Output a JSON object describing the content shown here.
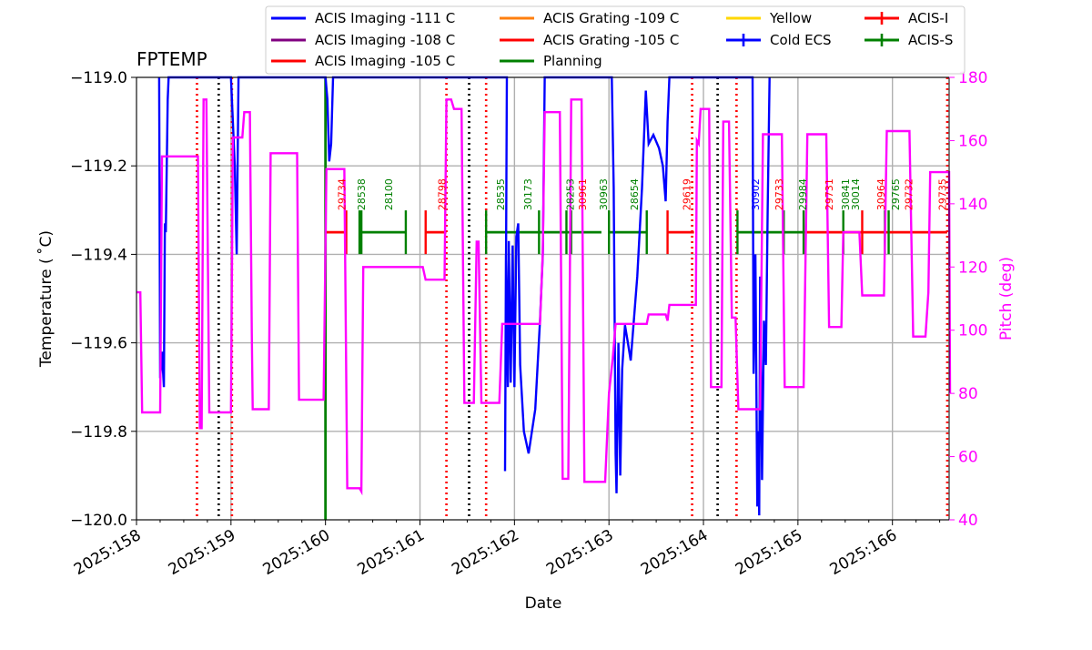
{
  "chart_data": {
    "type": "line",
    "title": "FPTEMP",
    "xlabel": "Date",
    "ylabel": "Temperature ( ˚C)",
    "y2label": "Pitch (deg)",
    "xlim": [
      158.0,
      166.6
    ],
    "ylim": [
      -120.0,
      -119.0
    ],
    "y2lim": [
      40,
      180
    ],
    "x_ticks": [
      "2025:158",
      "2025:159",
      "2025:160",
      "2025:161",
      "2025:162",
      "2025:163",
      "2025:164",
      "2025:165",
      "2025:166"
    ],
    "x_tick_values": [
      158,
      159,
      160,
      161,
      162,
      163,
      164,
      165,
      166
    ],
    "y_ticks": [
      "−120.0",
      "−119.8",
      "−119.6",
      "−119.4",
      "−119.2",
      "−119.0"
    ],
    "y_tick_values": [
      -120.0,
      -119.8,
      -119.6,
      -119.4,
      -119.2,
      -119.0
    ],
    "y2_ticks": [
      "40",
      "60",
      "80",
      "100",
      "120",
      "140",
      "160",
      "180"
    ],
    "y2_tick_values": [
      40,
      60,
      80,
      100,
      120,
      140,
      160,
      180
    ],
    "grid": true,
    "legend_position": "top-center",
    "legend": [
      {
        "label": "ACIS Imaging -111 C",
        "color": "#0000ff",
        "marker": "line"
      },
      {
        "label": "ACIS Grating -109 C",
        "color": "#ff7f0e",
        "marker": "line"
      },
      {
        "label": "Yellow",
        "color": "#ffd700",
        "marker": "line"
      },
      {
        "label": "ACIS-I",
        "color": "#ff0000",
        "marker": "errorbar"
      },
      {
        "label": "ACIS Imaging -108 C",
        "color": "#800080",
        "marker": "line"
      },
      {
        "label": "ACIS Grating -105 C",
        "color": "#ff0000",
        "marker": "line"
      },
      {
        "label": "Cold ECS",
        "color": "#0000ff",
        "marker": "errorbar"
      },
      {
        "label": "ACIS-S",
        "color": "#008000",
        "marker": "errorbar"
      },
      {
        "label": "ACIS Imaging -105 C",
        "color": "#ff0000",
        "marker": "line"
      },
      {
        "label": "Planning",
        "color": "#008000",
        "marker": "line"
      }
    ],
    "colors": {
      "temperature": "#0000ff",
      "pitch": "#ff00ff",
      "acis_i": "#ff0000",
      "acis_s": "#008000",
      "planning": "#008000"
    },
    "temperature_series": [
      [
        158.24,
        -119.0
      ],
      [
        158.25,
        -119.68
      ],
      [
        158.27,
        -119.62
      ],
      [
        158.29,
        -119.7
      ],
      [
        158.3,
        -119.33
      ],
      [
        158.31,
        -119.35
      ],
      [
        158.33,
        -119.05
      ],
      [
        158.34,
        -119.0
      ],
      [
        159.0,
        -119.0
      ],
      [
        159.02,
        -119.1
      ],
      [
        159.04,
        -119.2
      ],
      [
        159.06,
        -119.4
      ],
      [
        159.08,
        -119.0
      ],
      [
        160.0,
        -119.0
      ],
      [
        160.02,
        -119.05
      ],
      [
        160.04,
        -119.19
      ],
      [
        160.06,
        -119.15
      ],
      [
        160.08,
        -119.0
      ],
      [
        161.92,
        -119.0
      ],
      [
        161.9,
        -119.89
      ],
      [
        161.91,
        -119.4
      ],
      [
        161.93,
        -119.7
      ],
      [
        161.94,
        -119.37
      ],
      [
        161.96,
        -119.69
      ],
      [
        161.98,
        -119.38
      ],
      [
        162.0,
        -119.7
      ],
      [
        162.02,
        -119.36
      ],
      [
        162.04,
        -119.33
      ],
      [
        162.06,
        -119.65
      ],
      [
        162.1,
        -119.8
      ],
      [
        162.15,
        -119.85
      ],
      [
        162.22,
        -119.75
      ],
      [
        162.27,
        -119.55
      ],
      [
        162.3,
        -119.4
      ],
      [
        162.32,
        -119.0
      ],
      [
        163.03,
        -119.0
      ],
      [
        163.05,
        -119.25
      ],
      [
        163.07,
        -119.85
      ],
      [
        163.08,
        -119.94
      ],
      [
        163.1,
        -119.6
      ],
      [
        163.12,
        -119.9
      ],
      [
        163.14,
        -119.66
      ],
      [
        163.17,
        -119.56
      ],
      [
        163.2,
        -119.6
      ],
      [
        163.23,
        -119.64
      ],
      [
        163.3,
        -119.45
      ],
      [
        163.35,
        -119.25
      ],
      [
        163.39,
        -119.03
      ],
      [
        163.42,
        -119.15
      ],
      [
        163.47,
        -119.13
      ],
      [
        163.53,
        -119.16
      ],
      [
        163.57,
        -119.2
      ],
      [
        163.6,
        -119.28
      ],
      [
        163.62,
        -119.1
      ],
      [
        163.64,
        -119.0
      ],
      [
        164.52,
        -119.0
      ],
      [
        164.53,
        -119.67
      ],
      [
        164.55,
        -119.4
      ],
      [
        164.57,
        -119.97
      ],
      [
        164.58,
        -119.8
      ],
      [
        164.59,
        -119.99
      ],
      [
        164.6,
        -119.45
      ],
      [
        164.62,
        -119.91
      ],
      [
        164.64,
        -119.55
      ],
      [
        164.66,
        -119.65
      ],
      [
        164.68,
        -119.3
      ],
      [
        164.7,
        -119.0
      ]
    ],
    "pitch_series": [
      [
        158.0,
        112
      ],
      [
        158.04,
        112
      ],
      [
        158.06,
        74
      ],
      [
        158.25,
        74
      ],
      [
        158.27,
        155
      ],
      [
        158.65,
        155
      ],
      [
        158.67,
        69
      ],
      [
        158.69,
        69
      ],
      [
        158.71,
        173
      ],
      [
        158.74,
        173
      ],
      [
        158.77,
        74
      ],
      [
        159.0,
        74
      ],
      [
        159.02,
        161
      ],
      [
        159.12,
        161
      ],
      [
        159.14,
        169
      ],
      [
        159.2,
        169
      ],
      [
        159.22,
        99
      ],
      [
        159.23,
        75
      ],
      [
        159.4,
        75
      ],
      [
        159.42,
        156
      ],
      [
        159.7,
        156
      ],
      [
        159.72,
        78
      ],
      [
        159.98,
        78
      ],
      [
        160.01,
        151
      ],
      [
        160.2,
        151
      ],
      [
        160.23,
        50
      ],
      [
        160.36,
        50
      ],
      [
        160.38,
        49
      ],
      [
        160.4,
        120
      ],
      [
        160.85,
        120
      ],
      [
        160.86,
        120
      ],
      [
        161.03,
        120
      ],
      [
        161.06,
        116
      ],
      [
        161.26,
        116
      ],
      [
        161.28,
        173
      ],
      [
        161.33,
        173
      ],
      [
        161.36,
        170
      ],
      [
        161.44,
        170
      ],
      [
        161.47,
        77
      ],
      [
        161.57,
        77
      ],
      [
        161.6,
        128
      ],
      [
        161.62,
        128
      ],
      [
        161.65,
        77
      ],
      [
        161.84,
        77
      ],
      [
        161.87,
        102
      ],
      [
        162.27,
        102
      ],
      [
        162.3,
        125
      ],
      [
        162.32,
        169
      ],
      [
        162.48,
        169
      ],
      [
        162.51,
        53
      ],
      [
        162.57,
        53
      ],
      [
        162.6,
        173
      ],
      [
        162.71,
        173
      ],
      [
        162.74,
        52
      ],
      [
        162.96,
        52
      ],
      [
        163.0,
        80
      ],
      [
        163.04,
        91
      ],
      [
        163.07,
        102
      ],
      [
        163.4,
        102
      ],
      [
        163.42,
        105
      ],
      [
        163.6,
        105
      ],
      [
        163.62,
        103
      ],
      [
        163.64,
        108
      ],
      [
        163.92,
        108
      ],
      [
        163.93,
        160
      ],
      [
        163.95,
        159
      ],
      [
        163.97,
        170
      ],
      [
        164.06,
        170
      ],
      [
        164.08,
        82
      ],
      [
        164.19,
        82
      ],
      [
        164.21,
        166
      ],
      [
        164.27,
        166
      ],
      [
        164.3,
        104
      ],
      [
        164.34,
        104
      ],
      [
        164.37,
        75
      ],
      [
        164.6,
        75
      ],
      [
        164.63,
        162
      ],
      [
        164.83,
        162
      ],
      [
        164.86,
        82
      ],
      [
        165.06,
        82
      ],
      [
        165.1,
        162
      ],
      [
        165.3,
        162
      ],
      [
        165.33,
        101
      ],
      [
        165.46,
        101
      ],
      [
        165.48,
        131
      ],
      [
        165.65,
        131
      ],
      [
        165.68,
        111
      ],
      [
        165.91,
        111
      ],
      [
        165.94,
        163
      ],
      [
        166.18,
        163
      ],
      [
        166.22,
        98
      ],
      [
        166.35,
        98
      ],
      [
        166.38,
        112
      ],
      [
        166.4,
        150
      ],
      [
        166.6,
        150
      ],
      [
        166.61,
        80
      ]
    ],
    "dotted_lines": [
      {
        "x": 158.64,
        "color": "#ff0000"
      },
      {
        "x": 158.87,
        "color": "#000000"
      },
      {
        "x": 159.01,
        "color": "#ff0000"
      },
      {
        "x": 161.28,
        "color": "#ff0000"
      },
      {
        "x": 161.52,
        "color": "#000000"
      },
      {
        "x": 161.7,
        "color": "#ff0000"
      },
      {
        "x": 163.88,
        "color": "#ff0000"
      },
      {
        "x": 164.15,
        "color": "#000000"
      },
      {
        "x": 164.35,
        "color": "#ff0000"
      },
      {
        "x": 166.58,
        "color": "#ff0000"
      }
    ],
    "planning_spike_x": 160.0,
    "obs_segments": [
      {
        "x0": 160.0,
        "x1": 160.22,
        "color": "#ff0000"
      },
      {
        "x0": 160.36,
        "x1": 160.85,
        "color": "#008000"
      },
      {
        "x0": 161.06,
        "x1": 161.28,
        "color": "#ff0000"
      },
      {
        "x0": 161.7,
        "x1": 162.92,
        "color": "#008000"
      },
      {
        "x0": 163.0,
        "x1": 163.4,
        "color": "#008000"
      },
      {
        "x0": 163.62,
        "x1": 163.9,
        "color": "#ff0000"
      },
      {
        "x0": 164.36,
        "x1": 164.85,
        "color": "#008000"
      },
      {
        "x0": 164.85,
        "x1": 165.06,
        "color": "#008000"
      },
      {
        "x0": 165.06,
        "x1": 165.94,
        "color": "#ff0000"
      },
      {
        "x0": 165.94,
        "x1": 166.58,
        "color": "#ff0000"
      }
    ],
    "obs_ticks": [
      {
        "x": 160.22,
        "color": "#ff0000"
      },
      {
        "x": 160.36,
        "color": "#008000"
      },
      {
        "x": 160.38,
        "color": "#008000"
      },
      {
        "x": 160.85,
        "color": "#008000"
      },
      {
        "x": 161.06,
        "color": "#ff0000"
      },
      {
        "x": 161.7,
        "color": "#008000"
      },
      {
        "x": 162.26,
        "color": "#008000"
      },
      {
        "x": 162.55,
        "color": "#008000"
      },
      {
        "x": 162.6,
        "color": "#008000"
      },
      {
        "x": 163.0,
        "color": "#008000"
      },
      {
        "x": 163.4,
        "color": "#008000"
      },
      {
        "x": 163.62,
        "color": "#ff0000"
      },
      {
        "x": 164.36,
        "color": "#008000"
      },
      {
        "x": 164.85,
        "color": "#008000"
      },
      {
        "x": 165.06,
        "color": "#008000"
      },
      {
        "x": 165.48,
        "color": "#008000"
      },
      {
        "x": 165.68,
        "color": "#ff0000"
      },
      {
        "x": 165.92,
        "color": "#008000"
      },
      {
        "x": 165.96,
        "color": "#008000"
      }
    ],
    "obsid_labels": [
      {
        "x": 160.17,
        "text": "29734",
        "color": "#ff0000"
      },
      {
        "x": 160.38,
        "text": "28538",
        "color": "#008000"
      },
      {
        "x": 160.67,
        "text": "28100",
        "color": "#008000"
      },
      {
        "x": 161.23,
        "text": "28798",
        "color": "#ff0000"
      },
      {
        "x": 161.85,
        "text": "28535",
        "color": "#008000"
      },
      {
        "x": 162.14,
        "text": "30173",
        "color": "#008000"
      },
      {
        "x": 162.59,
        "text": "28253",
        "color": "#008000"
      },
      {
        "x": 162.72,
        "text": "30961",
        "color": "#ff0000"
      },
      {
        "x": 162.94,
        "text": "30963",
        "color": "#008000"
      },
      {
        "x": 163.27,
        "text": "28654",
        "color": "#008000"
      },
      {
        "x": 163.82,
        "text": "29619",
        "color": "#ff0000"
      },
      {
        "x": 164.55,
        "text": "30902",
        "color": "#0000ff"
      },
      {
        "x": 164.8,
        "text": "29733",
        "color": "#ff0000"
      },
      {
        "x": 165.05,
        "text": "29984",
        "color": "#008000"
      },
      {
        "x": 165.33,
        "text": "29731",
        "color": "#ff0000"
      },
      {
        "x": 165.5,
        "text": "30841",
        "color": "#008000"
      },
      {
        "x": 165.61,
        "text": "30014",
        "color": "#008000"
      },
      {
        "x": 165.88,
        "text": "30964",
        "color": "#ff0000"
      },
      {
        "x": 166.03,
        "text": "29765",
        "color": "#008000"
      },
      {
        "x": 166.17,
        "text": "29732",
        "color": "#ff0000"
      },
      {
        "x": 166.53,
        "text": "29735",
        "color": "#ff0000"
      }
    ]
  }
}
